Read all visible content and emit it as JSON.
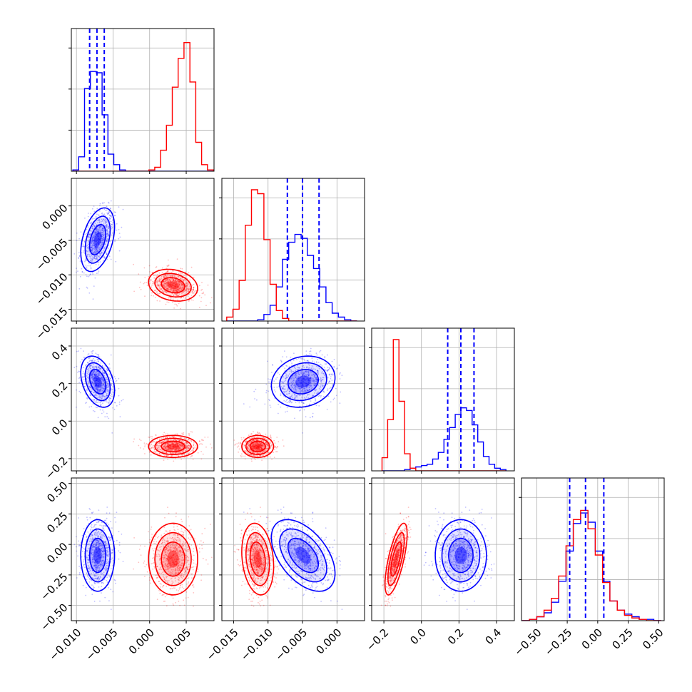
{
  "chart_data": {
    "type": "corner",
    "colors": {
      "blue_series": "#0000ff",
      "red_series": "#ff0000",
      "grid": "#b0b0b0",
      "frame": "#000000"
    },
    "grid": true,
    "parameters": [
      {
        "range": [
          -0.0107,
          0.0088
        ],
        "ticks": [
          -0.01,
          -0.005,
          0.0,
          0.005
        ],
        "tick_labels": [
          "−0.010",
          "−0.005",
          "0.000",
          "0.005"
        ]
      },
      {
        "range": [
          -0.0167,
          0.004
        ],
        "ticks": [
          -0.015,
          -0.01,
          -0.005,
          0.0
        ],
        "tick_labels": [
          "−0.015",
          "−0.010",
          "−0.005",
          "0.000"
        ]
      },
      {
        "range": [
          -0.265,
          0.495
        ],
        "ticks": [
          -0.2,
          0.0,
          0.2,
          0.4
        ],
        "tick_labels": [
          "−0.2",
          "0.0",
          "0.2",
          "0.4"
        ]
      },
      {
        "range": [
          -0.625,
          0.545
        ],
        "ticks": [
          -0.5,
          -0.25,
          0.0,
          0.25,
          0.5
        ],
        "tick_labels": [
          "−0.50",
          "−0.25",
          "0.00",
          "0.25",
          "0.50"
        ]
      }
    ],
    "series": [
      {
        "color": "#0000ff",
        "mean": [
          -0.0071,
          -0.0049,
          0.21,
          -0.09
        ],
        "sd": [
          0.0011,
          0.0022,
          0.065,
          0.14
        ],
        "corr": [
          [
            1,
            0.4,
            -0.35,
            0
          ],
          [
            0.4,
            1,
            0.15,
            -0.5
          ],
          [
            -0.35,
            0.15,
            1,
            0
          ],
          [
            0,
            -0.5,
            0,
            1
          ]
        ],
        "quantiles": [
          {
            "q16": -0.0082,
            "q50": -0.0072,
            "q84": -0.0062
          },
          {
            "q16": -0.0072,
            "q50": -0.005,
            "q84": -0.0026
          },
          {
            "q16": 0.14,
            "q50": 0.21,
            "q84": 0.28
          },
          {
            "q16": -0.23,
            "q50": -0.1,
            "q84": 0.05
          }
        ]
      },
      {
        "color": "#ff0000",
        "mean": [
          0.0032,
          -0.0115,
          -0.135,
          -0.12
        ],
        "sd": [
          0.0016,
          0.0011,
          0.028,
          0.14
        ],
        "corr": [
          [
            1,
            -0.2,
            0,
            0
          ],
          [
            -0.2,
            1,
            0,
            -0.2
          ],
          [
            0,
            0,
            1,
            0.7
          ],
          [
            0,
            -0.2,
            0.7,
            1
          ]
        ]
      }
    ],
    "histograms": [
      {
        "edges": [
          -0.0105,
          -0.0097,
          -0.0089,
          -0.0081,
          -0.0073,
          -0.0065,
          -0.0057,
          -0.0049,
          -0.0041,
          -0.0033,
          -0.0025,
          -0.0017,
          -0.0009,
          -0.0001,
          0.0007,
          0.0015,
          0.0023,
          0.0031,
          0.0039,
          0.0047,
          0.0055,
          0.0063,
          0.0071,
          0.0079,
          0.0087
        ],
        "blue": [
          0.01,
          0.11,
          0.63,
          0.76,
          0.75,
          0.43,
          0.13,
          0.05,
          0.01,
          0.0,
          0.0,
          0.0,
          0.0,
          0.0,
          0.0,
          0.0,
          0.0,
          0.0,
          0.0,
          0.0,
          0.0,
          0.0,
          0.0,
          0.0
        ],
        "red": [
          0.0,
          0.0,
          0.0,
          0.0,
          0.0,
          0.0,
          0.0,
          0.0,
          0.0,
          0.0,
          0.0,
          0.0,
          0.0,
          0.01,
          0.03,
          0.16,
          0.35,
          0.64,
          0.86,
          0.98,
          0.68,
          0.22,
          0.05,
          0.01
        ]
      },
      {
        "edges": [
          -0.016,
          -0.0151,
          -0.0142,
          -0.0133,
          -0.0124,
          -0.0115,
          -0.0106,
          -0.0097,
          -0.0088,
          -0.0079,
          -0.007,
          -0.0061,
          -0.0052,
          -0.0043,
          -0.0034,
          -0.0025,
          -0.0016,
          -0.0007,
          0.0002,
          0.0011,
          0.002,
          0.0029
        ],
        "blue": [
          0.0,
          0.0,
          0.0,
          0.0,
          0.0,
          0.01,
          0.05,
          0.12,
          0.26,
          0.47,
          0.6,
          0.66,
          0.63,
          0.5,
          0.4,
          0.26,
          0.14,
          0.06,
          0.03,
          0.01,
          0.0
        ],
        "red": [
          0.03,
          0.09,
          0.31,
          0.73,
          1.0,
          0.97,
          0.62,
          0.28,
          0.08,
          0.02,
          0.0,
          0.0,
          0.0,
          0.0,
          0.0,
          0.0,
          0.0,
          0.0,
          0.0,
          0.0,
          0.0
        ]
      },
      {
        "edges": [
          -0.21,
          -0.18,
          -0.15,
          -0.12,
          -0.09,
          -0.06,
          -0.03,
          0.0,
          0.03,
          0.06,
          0.09,
          0.12,
          0.15,
          0.18,
          0.21,
          0.24,
          0.27,
          0.3,
          0.33,
          0.36,
          0.39,
          0.42,
          0.45
        ],
        "blue": [
          0.0,
          0.0,
          0.0,
          0.0,
          0.01,
          0.02,
          0.03,
          0.04,
          0.05,
          0.09,
          0.14,
          0.24,
          0.33,
          0.43,
          0.48,
          0.46,
          0.35,
          0.22,
          0.11,
          0.05,
          0.02,
          0.01
        ],
        "red": [
          0.1,
          0.39,
          1.0,
          0.53,
          0.13,
          0.02,
          0.0,
          0.0,
          0.0,
          0.0,
          0.0,
          0.0,
          0.0,
          0.0,
          0.0,
          0.0,
          0.0,
          0.0,
          0.0,
          0.0,
          0.0,
          0.0
        ]
      },
      {
        "edges": [
          -0.62,
          -0.56,
          -0.5,
          -0.44,
          -0.38,
          -0.32,
          -0.26,
          -0.2,
          -0.14,
          -0.08,
          -0.02,
          0.04,
          0.1,
          0.16,
          0.22,
          0.28,
          0.34,
          0.4,
          0.46,
          0.52
        ],
        "blue": [
          0.0,
          0.01,
          0.03,
          0.06,
          0.14,
          0.3,
          0.53,
          0.74,
          0.82,
          0.75,
          0.53,
          0.3,
          0.15,
          0.08,
          0.05,
          0.03,
          0.01,
          0.01,
          0.0
        ],
        "red": [
          0.0,
          0.01,
          0.03,
          0.08,
          0.17,
          0.34,
          0.57,
          0.77,
          0.84,
          0.7,
          0.5,
          0.29,
          0.15,
          0.08,
          0.04,
          0.02,
          0.01,
          0.0,
          0.0
        ]
      }
    ],
    "scatter_points_per_series": 800
  }
}
